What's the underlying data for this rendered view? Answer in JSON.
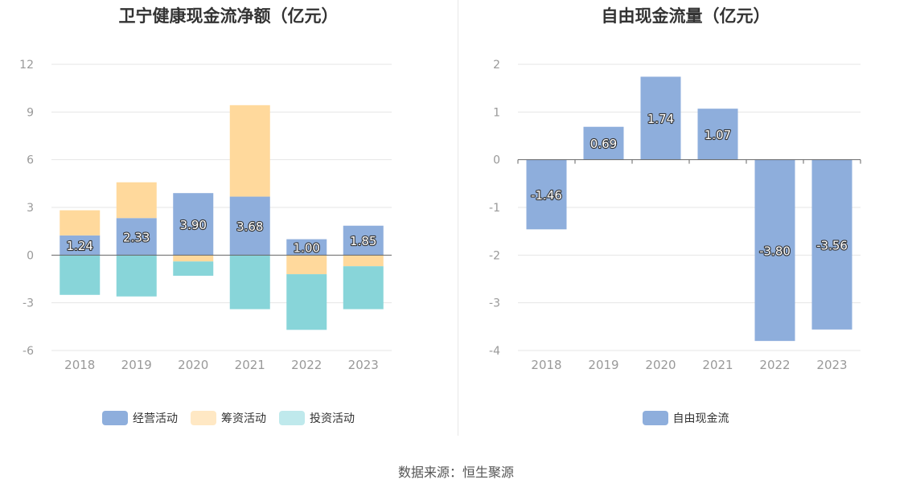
{
  "source_text": "数据来源：恒生聚源",
  "chart_data": [
    {
      "type": "bar",
      "stacked": true,
      "title": "卫宁健康现金流净额（亿元）",
      "categories": [
        "2018",
        "2019",
        "2020",
        "2021",
        "2022",
        "2023"
      ],
      "ylim": [
        -6,
        12
      ],
      "yticks": [
        12,
        9,
        6,
        3,
        0,
        -3,
        -6
      ],
      "grid": true,
      "legend_position": "bottom",
      "series": [
        {
          "name": "经营活动",
          "color": "#8eaedc",
          "labeled": true,
          "values": [
            1.24,
            2.33,
            3.9,
            3.68,
            1.0,
            1.85
          ],
          "labels": [
            "1.24",
            "2.33",
            "3.90",
            "3.68",
            "1.00",
            "1.85"
          ]
        },
        {
          "name": "筹资活动",
          "color": "#ffd99c",
          "legend_color": "#ffe8c4",
          "values": [
            1.58,
            2.25,
            -0.4,
            5.75,
            -1.2,
            -0.7
          ]
        },
        {
          "name": "投资活动",
          "color": "#88d5d9",
          "legend_color": "#bfe9ec",
          "values": [
            -2.5,
            -2.6,
            -0.9,
            -3.4,
            -3.5,
            -2.7
          ]
        }
      ]
    },
    {
      "type": "bar",
      "title": "自由现金流量（亿元）",
      "categories": [
        "2018",
        "2019",
        "2020",
        "2021",
        "2022",
        "2023"
      ],
      "ylim": [
        -4,
        2
      ],
      "yticks": [
        2,
        1,
        0,
        -1,
        -2,
        -3,
        -4
      ],
      "grid": true,
      "legend_position": "bottom",
      "series": [
        {
          "name": "自由现金流",
          "color": "#8eaedc",
          "labeled": true,
          "values": [
            -1.46,
            0.69,
            1.74,
            1.07,
            -3.8,
            -3.56
          ],
          "labels": [
            "-1.46",
            "0.69",
            "1.74",
            "1.07",
            "-3.80",
            "-3.56"
          ]
        }
      ]
    }
  ]
}
